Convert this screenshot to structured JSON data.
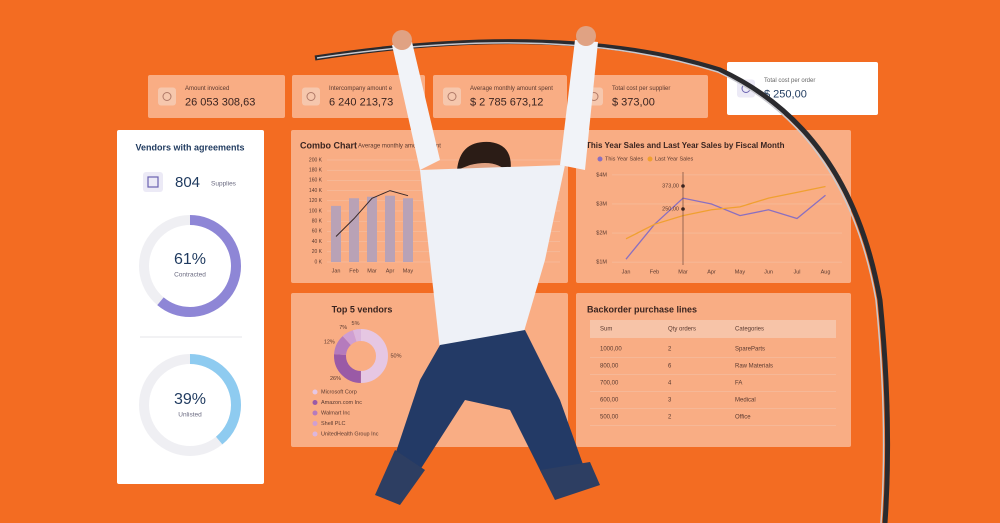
{
  "kpis": [
    {
      "label": "Amount invoiced",
      "value": "26 053 308,63"
    },
    {
      "label": "Intercompany amount e",
      "value": "6 240 213,73"
    },
    {
      "label": "Average monthly amount spent",
      "value": "$ 2 785 673,12"
    },
    {
      "label": "Total cost per supplier",
      "value": "$ 373,00"
    },
    {
      "label": "Total cost per order",
      "value": "$ 250,00"
    }
  ],
  "vendors": {
    "title": "Vendors with agreements",
    "count": "804",
    "count_label": "Supplies",
    "contracted": {
      "value": 61,
      "label": "61%",
      "caption": "Contracted"
    },
    "unlisted": {
      "value": 39,
      "label": "39%",
      "caption": "Unlisted"
    }
  },
  "combo": {
    "title": "Combo Chart",
    "subtitle": "Average monthly amount spent",
    "categories": [
      "Jan",
      "Feb",
      "Mar",
      "Apr",
      "May"
    ],
    "bars": [
      110,
      125,
      128,
      130,
      125
    ],
    "line": [
      50,
      85,
      125,
      140,
      130
    ],
    "ylim": [
      0,
      200
    ],
    "yticks": [
      {
        "value": 0,
        "label": "0 K"
      },
      {
        "value": 20,
        "label": "20 K"
      },
      {
        "value": 40,
        "label": "40 K"
      },
      {
        "value": 60,
        "label": "60 K"
      },
      {
        "value": 80,
        "label": "80 K"
      },
      {
        "value": 100,
        "label": "100 K"
      },
      {
        "value": 120,
        "label": "120 K"
      },
      {
        "value": 140,
        "label": "140 K"
      },
      {
        "value": 160,
        "label": "160 K"
      },
      {
        "value": 180,
        "label": "180 K"
      },
      {
        "value": 200,
        "label": "200 K"
      }
    ]
  },
  "sales": {
    "title": "This Year Sales and Last Year Sales by Fiscal Month",
    "categories": [
      "Jan",
      "Feb",
      "Mar",
      "Apr",
      "May",
      "Jun",
      "Jul",
      "Aug"
    ],
    "series": [
      {
        "name": "This Year Sales",
        "color": "#8a6fc0",
        "values": [
          1.1,
          2.3,
          3.2,
          3.0,
          2.6,
          2.8,
          2.5,
          3.3
        ]
      },
      {
        "name": "Last Year Sales",
        "color": "#f0a030",
        "values": [
          1.8,
          2.3,
          2.6,
          2.8,
          2.9,
          3.2,
          3.4,
          3.6
        ]
      }
    ],
    "ylim": [
      0.9,
      4.1
    ],
    "yticks": [
      {
        "value": 1,
        "label": "$1M"
      },
      {
        "value": 2,
        "label": "$2M"
      },
      {
        "value": 3,
        "label": "$3M"
      },
      {
        "value": 4,
        "label": "$4M"
      }
    ],
    "annotations": [
      "373,00",
      "250,00"
    ]
  },
  "top_vendors": {
    "title": "Top 5 vendors",
    "names": [
      "Microsoft Corp",
      "Amazon.com Inc",
      "Walmart Inc",
      "Shell PLC",
      "UnitedHealth Group Inc"
    ],
    "values": [
      50,
      26,
      12,
      7,
      5
    ],
    "value_labels": [
      "50%",
      "26%",
      "12%",
      "7%",
      "5%"
    ],
    "colors": [
      "#e6c7e3",
      "#9a5aa6",
      "#b57bbd",
      "#cf9fd2",
      "#dcb6dd"
    ]
  },
  "backorder": {
    "title": "Backorder purchase lines",
    "header": [
      "Sum",
      "Qty orders",
      "Categories"
    ],
    "rows": [
      [
        "1000,00",
        "2",
        "SpareParts"
      ],
      [
        "800,00",
        "6",
        "Raw Materials"
      ],
      [
        "700,00",
        "4",
        "FA"
      ],
      [
        "600,00",
        "3",
        "Medical"
      ],
      [
        "500,00",
        "2",
        "Office"
      ]
    ]
  }
}
